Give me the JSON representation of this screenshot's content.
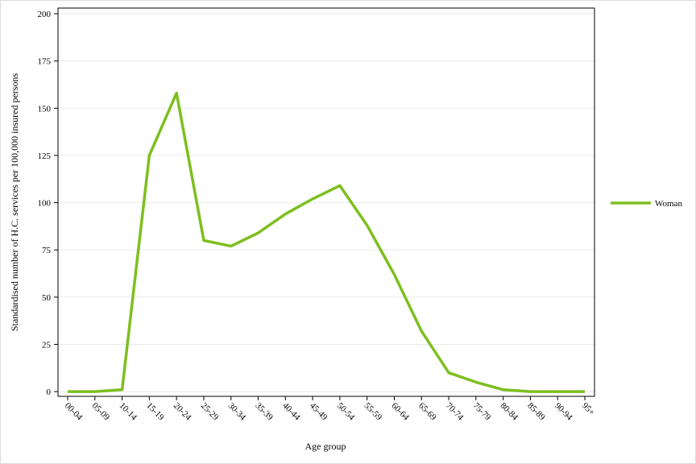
{
  "chart_data": {
    "type": "line",
    "x_label": "Age group",
    "y_label": "Standardised number of H.C. services per 100,000 insured persons",
    "categories": [
      "00-04",
      "05-09",
      "10-14",
      "15-19",
      "20-24",
      "25-29",
      "30-34",
      "35-39",
      "40-44",
      "45-49",
      "50-54",
      "55-59",
      "60-64",
      "65-69",
      "70-74",
      "75-79",
      "80-84",
      "85-89",
      "90-94",
      "95+"
    ],
    "series": [
      {
        "name": "Woman",
        "color": "#7dbf1f",
        "values": [
          0,
          0,
          1,
          125,
          158,
          80,
          77,
          84,
          94,
          102,
          109,
          88,
          62,
          32,
          10,
          5,
          1,
          0,
          0,
          0
        ]
      }
    ],
    "ylim": [
      -2.5,
      203
    ],
    "yticks": [
      0,
      25,
      50,
      75,
      100,
      125,
      150,
      175,
      200
    ],
    "grid": true,
    "legend": "right"
  }
}
